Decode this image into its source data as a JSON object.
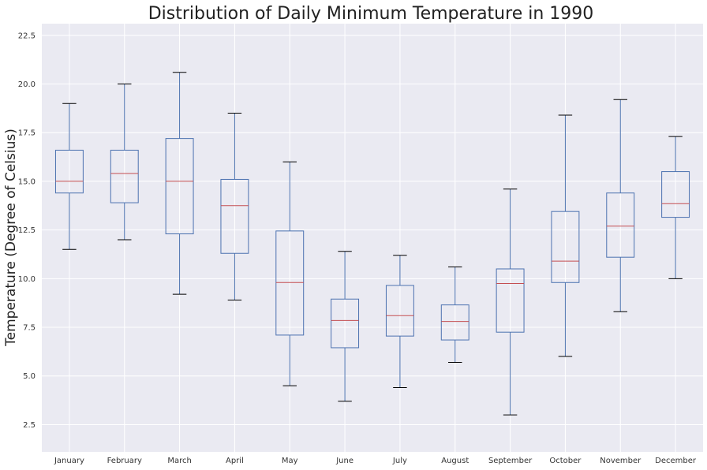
{
  "chart_data": {
    "type": "box",
    "title": "Distribution of Daily Minimum Temperature in 1990",
    "xlabel": "",
    "ylabel": "Temperature (Degree of Celsius)",
    "ylim": [
      1.1,
      23.1
    ],
    "yticks": [
      2.5,
      5.0,
      7.5,
      10.0,
      12.5,
      15.0,
      17.5,
      20.0,
      22.5
    ],
    "ytick_labels": [
      "2.5",
      "5.0",
      "7.5",
      "10.0",
      "12.5",
      "15.0",
      "17.5",
      "20.0",
      "22.5"
    ],
    "grid": true,
    "categories": [
      "January",
      "February",
      "March",
      "April",
      "May",
      "June",
      "July",
      "August",
      "September",
      "October",
      "November",
      "December"
    ],
    "boxes": [
      {
        "whislo": 11.5,
        "q1": 14.4,
        "med": 15.0,
        "q3": 16.6,
        "whishi": 19.0
      },
      {
        "whislo": 12.0,
        "q1": 13.9,
        "med": 15.4,
        "q3": 16.6,
        "whishi": 20.0
      },
      {
        "whislo": 9.2,
        "q1": 12.3,
        "med": 15.0,
        "q3": 17.2,
        "whishi": 20.6
      },
      {
        "whislo": 8.9,
        "q1": 11.3,
        "med": 13.75,
        "q3": 15.1,
        "whishi": 18.5
      },
      {
        "whislo": 4.5,
        "q1": 7.1,
        "med": 9.8,
        "q3": 12.45,
        "whishi": 16.0
      },
      {
        "whislo": 3.7,
        "q1": 6.45,
        "med": 7.85,
        "q3": 8.95,
        "whishi": 11.4
      },
      {
        "whislo": 4.4,
        "q1": 7.05,
        "med": 8.1,
        "q3": 9.65,
        "whishi": 11.2
      },
      {
        "whislo": 5.7,
        "q1": 6.85,
        "med": 7.8,
        "q3": 8.65,
        "whishi": 10.6
      },
      {
        "whislo": 3.0,
        "q1": 7.25,
        "med": 9.75,
        "q3": 10.5,
        "whishi": 14.6
      },
      {
        "whislo": 6.0,
        "q1": 9.8,
        "med": 10.9,
        "q3": 13.45,
        "whishi": 18.4
      },
      {
        "whislo": 8.3,
        "q1": 11.1,
        "med": 12.7,
        "q3": 14.4,
        "whishi": 19.2
      },
      {
        "whislo": 10.0,
        "q1": 13.15,
        "med": 13.85,
        "q3": 15.5,
        "whishi": 17.3
      }
    ],
    "colors": {
      "background": "#eaeaf2",
      "grid": "#ffffff",
      "box": "#4c72b0",
      "median": "#c44e52",
      "whisker": "#4c72b0",
      "cap": "#000000"
    }
  }
}
